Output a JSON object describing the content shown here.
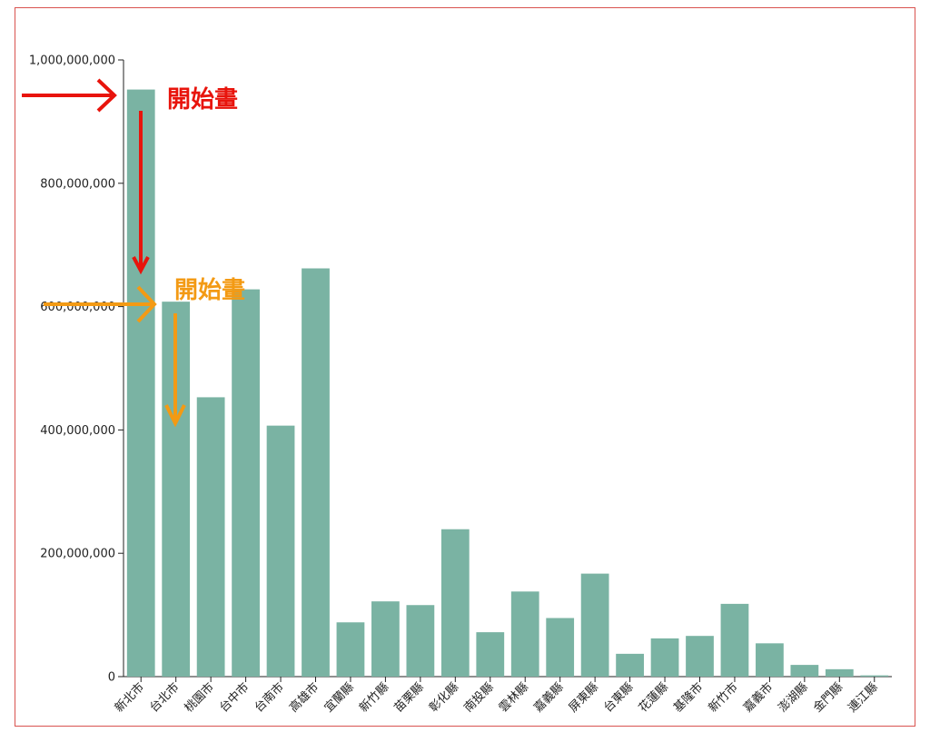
{
  "chart_data": {
    "type": "bar",
    "title": "",
    "xlabel": "",
    "ylabel": "",
    "ylim": [
      0,
      1000000000
    ],
    "yticks": [
      0,
      200000000,
      400000000,
      600000000,
      800000000,
      1000000000
    ],
    "ytick_labels": [
      "0",
      "200,000,000",
      "400,000,000",
      "600,000,000",
      "800,000,000",
      "1,000,000,000"
    ],
    "grid": false,
    "bar_color": "#7ab3a3",
    "categories": [
      "新北市",
      "台北市",
      "桃園市",
      "台中市",
      "台南市",
      "高雄市",
      "宜蘭縣",
      "新竹縣",
      "苗栗縣",
      "彰化縣",
      "南投縣",
      "雲林縣",
      "嘉義縣",
      "屏東縣",
      "台東縣",
      "花蓮縣",
      "基隆市",
      "新竹市",
      "嘉義市",
      "澎湖縣",
      "金門縣",
      "連江縣"
    ],
    "values": [
      952000000,
      608000000,
      453000000,
      628000000,
      407000000,
      662000000,
      88000000,
      122000000,
      116000000,
      239000000,
      72000000,
      138000000,
      95000000,
      167000000,
      37000000,
      62000000,
      66000000,
      118000000,
      54000000,
      19000000,
      12000000,
      2000000
    ]
  },
  "annotations": [
    {
      "text": "開始畫",
      "color": "#e8140c"
    },
    {
      "text": "開始畫",
      "color": "#f39a14"
    }
  ]
}
